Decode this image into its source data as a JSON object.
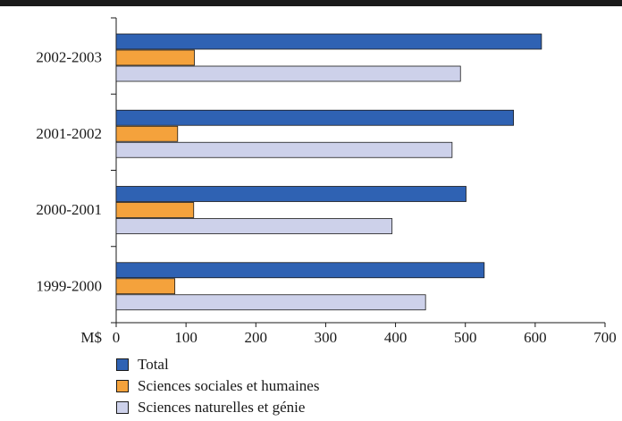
{
  "chart_data": {
    "type": "bar",
    "orientation": "horizontal",
    "categories": [
      "2002-2003",
      "2001-2002",
      "2000-2001",
      "1999-2000"
    ],
    "series": [
      {
        "name": "Total",
        "color": "#2f62b3",
        "values": [
          609,
          569,
          501,
          527
        ]
      },
      {
        "name": "Sciences sociales et humaines",
        "color": "#f4a23c",
        "values": [
          112,
          88,
          111,
          84
        ]
      },
      {
        "name": "Sciences naturelles et génie",
        "color": "#cdd1ea",
        "values": [
          493,
          481,
          395,
          443
        ]
      }
    ],
    "xlabel": "M$",
    "xlim": [
      0,
      700
    ],
    "xticks": [
      0,
      100,
      200,
      300,
      400,
      500,
      600,
      700
    ],
    "legend_position": "bottom-left",
    "grid": false
  }
}
